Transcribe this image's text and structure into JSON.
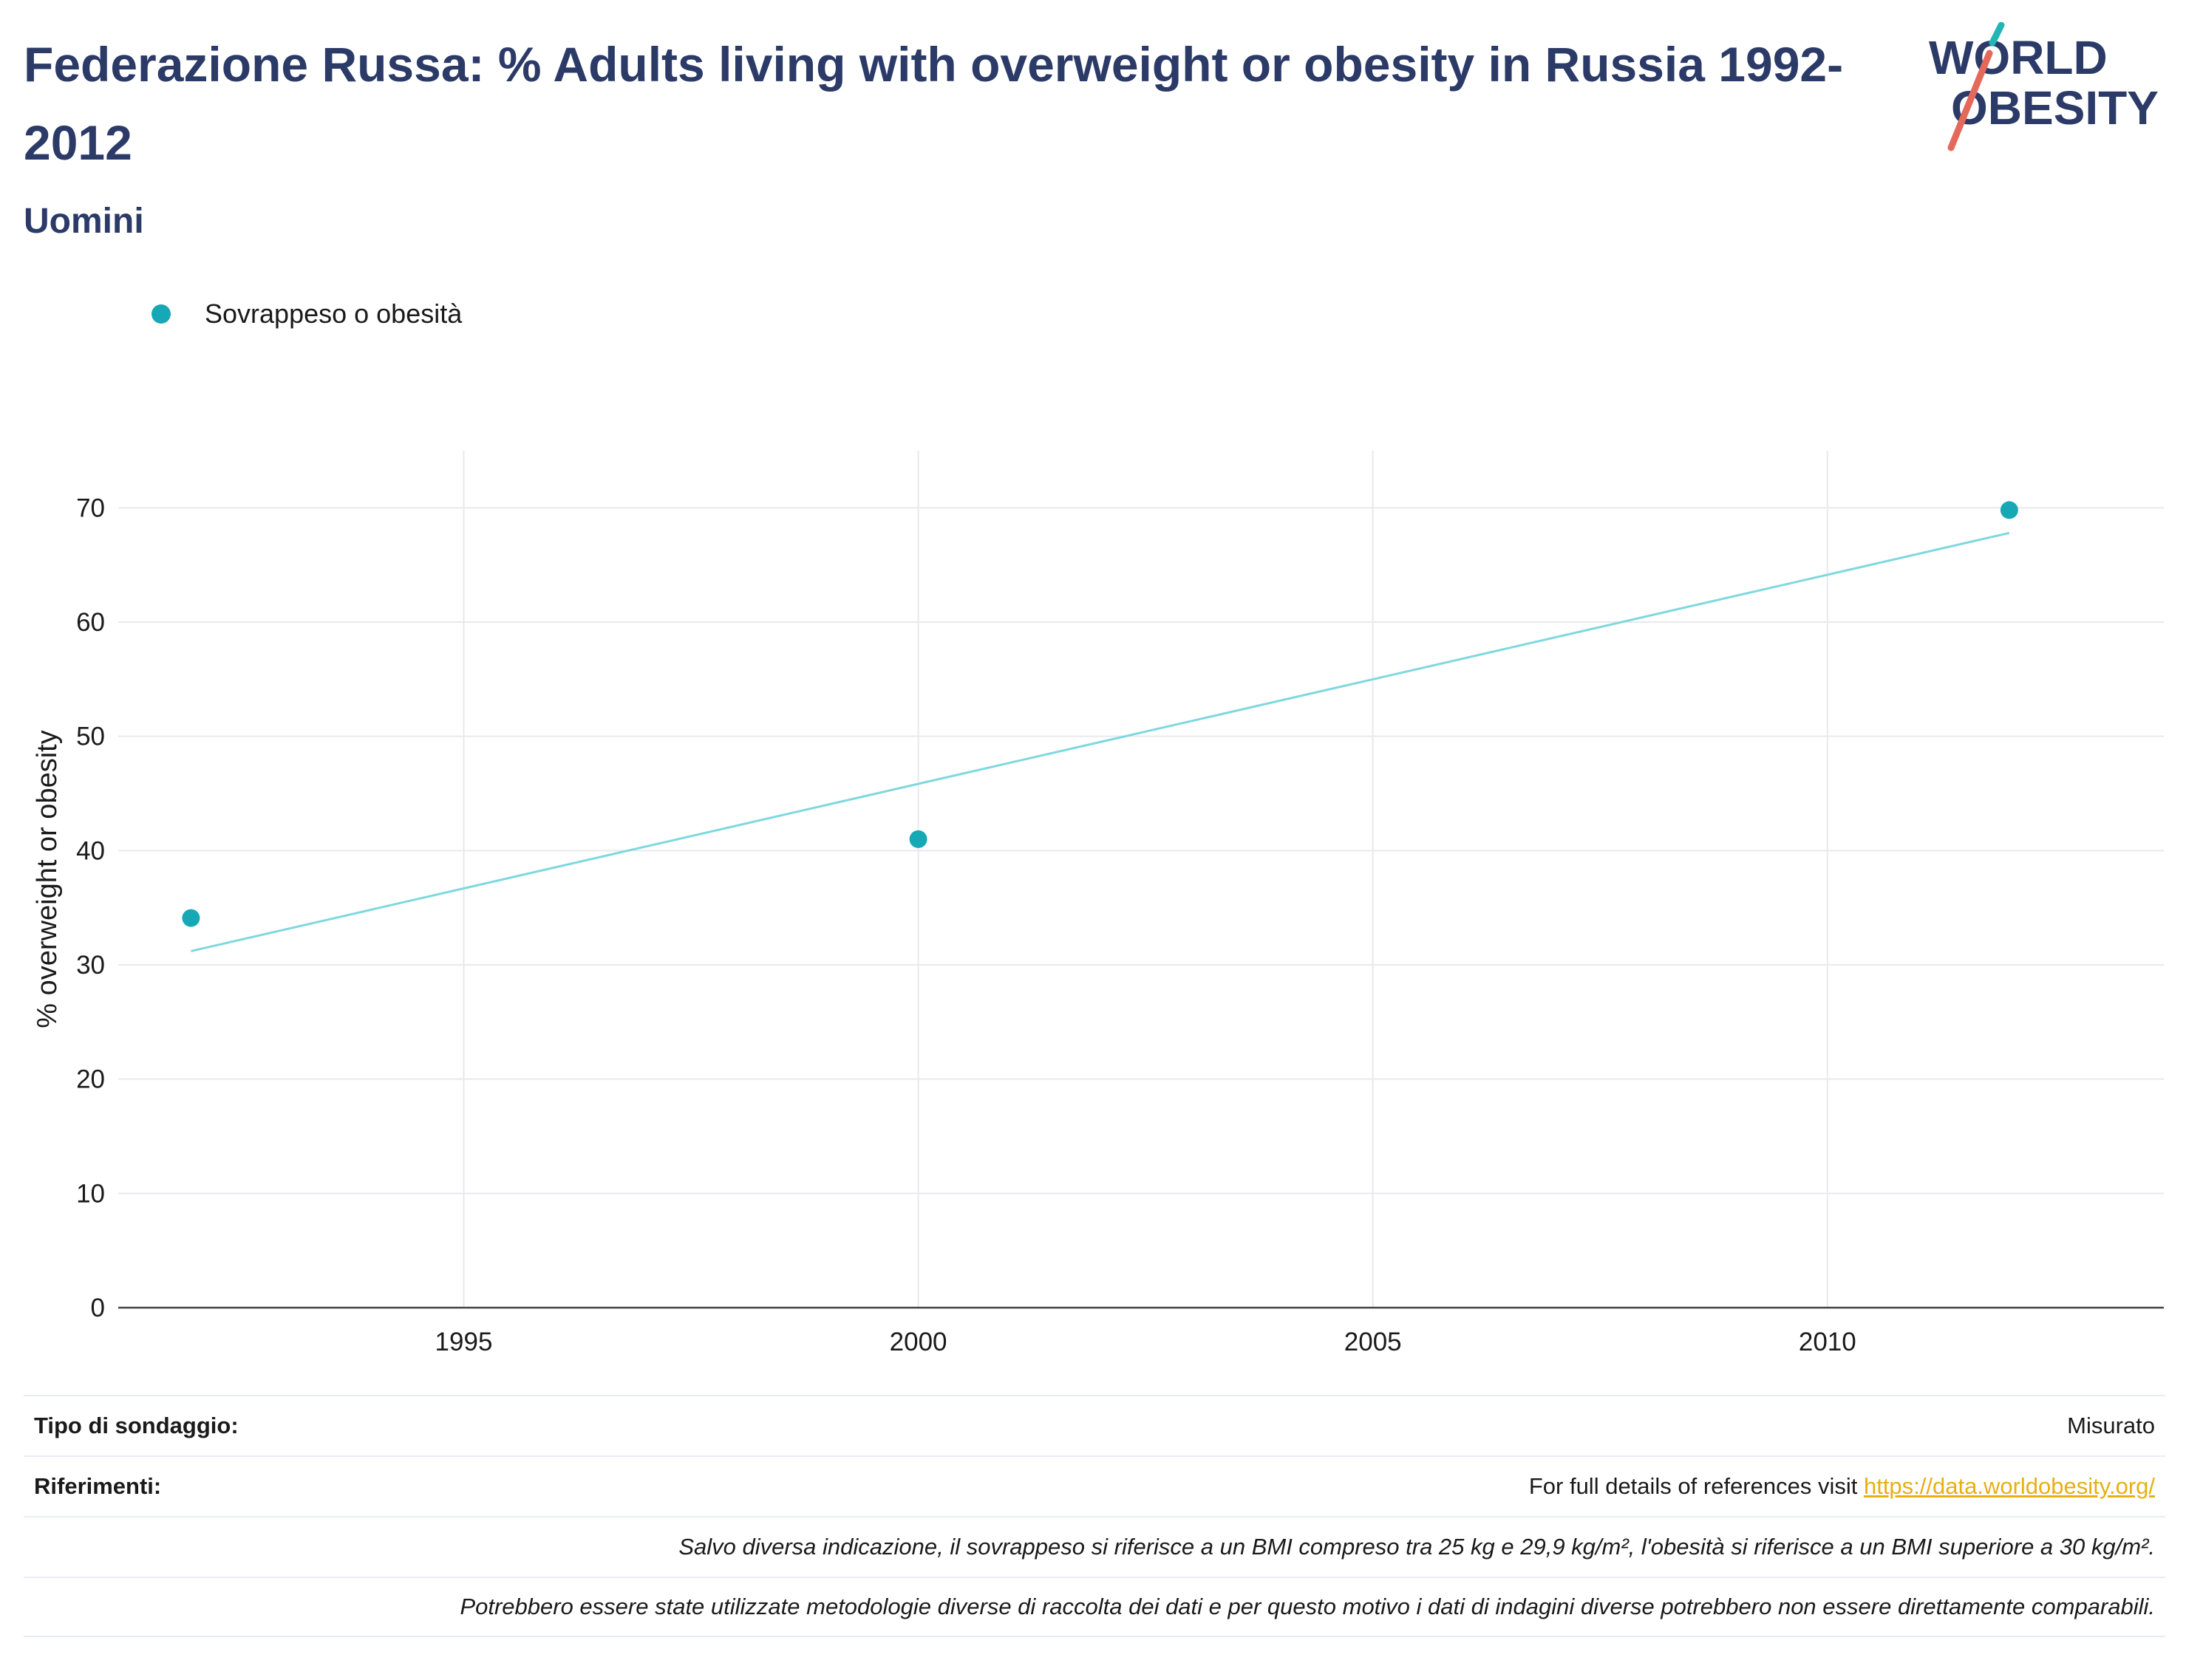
{
  "header": {
    "title": "Federazione Russa: % Adults living with overweight or obesity in Russia 1992-2012",
    "subtitle": "Uomini"
  },
  "logo": {
    "line1": "WORLD",
    "line2": "OBESITY"
  },
  "legend": {
    "label": "Sovrappeso o obesità",
    "color": "#16a9b5"
  },
  "chart_data": {
    "type": "scatter",
    "title": "Federazione Russa: % Adults living with overweight or obesity in Russia 1992-2012",
    "subtitle": "Uomini",
    "xlabel": "",
    "ylabel": "% overweight or obesity",
    "xlim": [
      1991.2,
      2013.7
    ],
    "ylim": [
      0,
      75
    ],
    "xticks": [
      1995,
      2000,
      2005,
      2010
    ],
    "yticks": [
      0,
      10,
      20,
      30,
      40,
      50,
      60,
      70
    ],
    "grid": true,
    "legend_position": "top-left",
    "series": [
      {
        "name": "Sovrappeso o obesità",
        "x": [
          1992,
          2000,
          2012
        ],
        "y": [
          34.1,
          41.0,
          69.8
        ],
        "color": "#16a9b5"
      }
    ],
    "trendline": {
      "x": [
        1992,
        2012
      ],
      "y": [
        31.2,
        67.8
      ],
      "color": "#7fd8de"
    }
  },
  "footer": {
    "survey_type_label": "Tipo di sondaggio:",
    "survey_type_value": "Misurato",
    "references_label": "Riferimenti:",
    "references_text": "For full details of references visit ",
    "references_link": "https://data.worldobesity.org/",
    "note1": "Salvo diversa indicazione, il sovrappeso si riferisce a un BMI compreso tra 25 kg e 29,9 kg/m², l'obesità si riferisce a un BMI superiore a 30 kg/m².",
    "note2": "Potrebbero essere state utilizzate metodologie diverse di raccolta dei dati e per questo motivo i dati di indagini diverse potrebbero non essere direttamente comparabili."
  }
}
